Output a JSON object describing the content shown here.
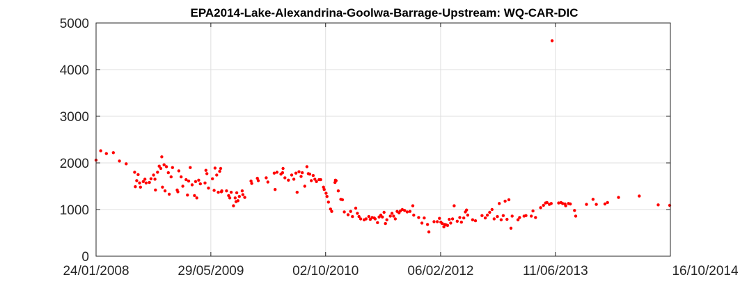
{
  "chart_data": {
    "type": "scatter",
    "title": "EPA2014-Lake-Alexandrina-Goolwa-Barrage-Upstream: WQ-CAR-DIC",
    "xlabel": "",
    "ylabel": "",
    "x_axis": {
      "type": "date",
      "range": [
        "2008-01-24",
        "2014-10-16"
      ],
      "tick_values": [
        "2008-01-24",
        "2009-05-29",
        "2010-10-02",
        "2012-02-06",
        "2013-06-11",
        "2014-10-16"
      ],
      "tick_labels": [
        "24/01/2008",
        "29/05/2009",
        "02/10/2010",
        "06/02/2012",
        "11/06/2013",
        "16/10/2014"
      ]
    },
    "y_axis": {
      "range": [
        0,
        5000
      ],
      "ticks": [
        0,
        1000,
        2000,
        3000,
        4000,
        5000
      ],
      "tick_labels": [
        "0",
        "1000",
        "2000",
        "3000",
        "4000",
        "5000"
      ]
    },
    "grid": true,
    "marker_color": "#ff0000",
    "series": [
      {
        "marker": "dot",
        "points": [
          [
            "2008-01-24",
            2060
          ],
          [
            "2008-02-13",
            2260
          ],
          [
            "2008-03-08",
            2200
          ],
          [
            "2008-04-07",
            2220
          ],
          [
            "2008-05-03",
            2040
          ],
          [
            "2008-06-01",
            1980
          ],
          [
            "2008-07-07",
            1800
          ],
          [
            "2008-07-10",
            1490
          ],
          [
            "2008-07-16",
            1620
          ],
          [
            "2008-07-22",
            1750
          ],
          [
            "2008-07-28",
            1570
          ],
          [
            "2008-08-01",
            1480
          ],
          [
            "2008-08-13",
            1600
          ],
          [
            "2008-08-20",
            1650
          ],
          [
            "2008-08-25",
            1570
          ],
          [
            "2008-09-08",
            1580
          ],
          [
            "2008-09-15",
            1660
          ],
          [
            "2008-09-26",
            1740
          ],
          [
            "2008-10-02",
            1650
          ],
          [
            "2008-10-04",
            1420
          ],
          [
            "2008-10-13",
            1800
          ],
          [
            "2008-10-20",
            1930
          ],
          [
            "2008-10-27",
            1880
          ],
          [
            "2008-10-31",
            2130
          ],
          [
            "2008-11-03",
            1480
          ],
          [
            "2008-11-10",
            1960
          ],
          [
            "2008-11-14",
            1400
          ],
          [
            "2008-11-20",
            1920
          ],
          [
            "2008-11-28",
            1790
          ],
          [
            "2008-12-02",
            1330
          ],
          [
            "2008-12-10",
            1700
          ],
          [
            "2008-12-16",
            1900
          ],
          [
            "2009-01-05",
            1420
          ],
          [
            "2009-01-08",
            1380
          ],
          [
            "2009-01-12",
            1830
          ],
          [
            "2009-01-22",
            1700
          ],
          [
            "2009-01-29",
            1500
          ],
          [
            "2009-02-12",
            1640
          ],
          [
            "2009-02-18",
            1310
          ],
          [
            "2009-02-23",
            1610
          ],
          [
            "2009-03-02",
            1900
          ],
          [
            "2009-03-10",
            1530
          ],
          [
            "2009-03-20",
            1300
          ],
          [
            "2009-03-25",
            1600
          ],
          [
            "2009-03-30",
            1250
          ],
          [
            "2009-04-07",
            1630
          ],
          [
            "2009-04-14",
            1550
          ],
          [
            "2009-05-04",
            1570
          ],
          [
            "2009-05-08",
            1840
          ],
          [
            "2009-05-12",
            1770
          ],
          [
            "2009-05-19",
            1460
          ],
          [
            "2009-06-05",
            1660
          ],
          [
            "2009-06-12",
            1410
          ],
          [
            "2009-06-16",
            1890
          ],
          [
            "2009-06-23",
            1740
          ],
          [
            "2009-06-30",
            1370
          ],
          [
            "2009-07-06",
            1820
          ],
          [
            "2009-07-10",
            1880
          ],
          [
            "2009-07-13",
            1380
          ],
          [
            "2009-07-15",
            1400
          ],
          [
            "2009-08-04",
            1400
          ],
          [
            "2009-08-13",
            1300
          ],
          [
            "2009-08-18",
            1250
          ],
          [
            "2009-08-24",
            1370
          ],
          [
            "2009-09-03",
            1080
          ],
          [
            "2009-09-10",
            1250
          ],
          [
            "2009-09-14",
            1170
          ],
          [
            "2009-09-17",
            1360
          ],
          [
            "2009-09-22",
            1190
          ],
          [
            "2009-09-28",
            1280
          ],
          [
            "2009-10-10",
            1400
          ],
          [
            "2009-10-13",
            1320
          ],
          [
            "2009-10-21",
            1260
          ],
          [
            "2009-11-17",
            1610
          ],
          [
            "2009-11-20",
            1560
          ],
          [
            "2009-12-14",
            1670
          ],
          [
            "2009-12-18",
            1620
          ],
          [
            "2010-01-21",
            1680
          ],
          [
            "2010-01-28",
            1590
          ],
          [
            "2010-02-24",
            1780
          ],
          [
            "2010-02-28",
            1430
          ],
          [
            "2010-03-08",
            1800
          ],
          [
            "2010-03-25",
            1760
          ],
          [
            "2010-04-01",
            1790
          ],
          [
            "2010-04-03",
            1880
          ],
          [
            "2010-04-11",
            1680
          ],
          [
            "2010-04-26",
            1630
          ],
          [
            "2010-05-10",
            1740
          ],
          [
            "2010-05-19",
            1650
          ],
          [
            "2010-05-28",
            1780
          ],
          [
            "2010-06-02",
            1370
          ],
          [
            "2010-06-10",
            1810
          ],
          [
            "2010-06-19",
            1710
          ],
          [
            "2010-06-24",
            1790
          ],
          [
            "2010-07-05",
            1500
          ],
          [
            "2010-07-14",
            1920
          ],
          [
            "2010-07-20",
            1770
          ],
          [
            "2010-07-26",
            1760
          ],
          [
            "2010-08-02",
            1620
          ],
          [
            "2010-08-10",
            1730
          ],
          [
            "2010-08-17",
            1650
          ],
          [
            "2010-08-24",
            1600
          ],
          [
            "2010-09-04",
            1640
          ],
          [
            "2010-09-11",
            1640
          ],
          [
            "2010-09-23",
            1480
          ],
          [
            "2010-09-26",
            1430
          ],
          [
            "2010-10-04",
            1350
          ],
          [
            "2010-10-08",
            1280
          ],
          [
            "2010-10-14",
            1160
          ],
          [
            "2010-10-23",
            1010
          ],
          [
            "2010-10-28",
            960
          ],
          [
            "2010-11-11",
            1580
          ],
          [
            "2010-11-13",
            1630
          ],
          [
            "2010-11-16",
            1620
          ],
          [
            "2010-11-25",
            1400
          ],
          [
            "2010-12-06",
            1220
          ],
          [
            "2010-12-13",
            1210
          ],
          [
            "2010-12-21",
            950
          ],
          [
            "2011-01-06",
            890
          ],
          [
            "2011-01-17",
            960
          ],
          [
            "2011-01-25",
            850
          ],
          [
            "2011-02-08",
            1030
          ],
          [
            "2011-02-15",
            920
          ],
          [
            "2011-02-22",
            850
          ],
          [
            "2011-03-01",
            800
          ],
          [
            "2011-03-16",
            780
          ],
          [
            "2011-03-24",
            800
          ],
          [
            "2011-04-05",
            850
          ],
          [
            "2011-04-11",
            790
          ],
          [
            "2011-04-19",
            830
          ],
          [
            "2011-04-28",
            820
          ],
          [
            "2011-05-02",
            800
          ],
          [
            "2011-05-12",
            720
          ],
          [
            "2011-05-19",
            840
          ],
          [
            "2011-05-26",
            880
          ],
          [
            "2011-06-02",
            840
          ],
          [
            "2011-06-09",
            940
          ],
          [
            "2011-06-15",
            700
          ],
          [
            "2011-06-21",
            780
          ],
          [
            "2011-07-06",
            860
          ],
          [
            "2011-07-13",
            920
          ],
          [
            "2011-07-20",
            860
          ],
          [
            "2011-07-27",
            800
          ],
          [
            "2011-08-04",
            960
          ],
          [
            "2011-08-12",
            930
          ],
          [
            "2011-08-18",
            970
          ],
          [
            "2011-08-26",
            1000
          ],
          [
            "2011-09-05",
            980
          ],
          [
            "2011-09-16",
            950
          ],
          [
            "2011-09-28",
            960
          ],
          [
            "2011-10-10",
            1080
          ],
          [
            "2011-10-14",
            880
          ],
          [
            "2011-11-04",
            830
          ],
          [
            "2011-11-18",
            710
          ],
          [
            "2011-11-28",
            820
          ],
          [
            "2011-12-12",
            680
          ],
          [
            "2011-12-18",
            520
          ],
          [
            "2012-01-09",
            740
          ],
          [
            "2012-01-23",
            740
          ],
          [
            "2012-02-01",
            810
          ],
          [
            "2012-02-07",
            730
          ],
          [
            "2012-02-13",
            700
          ],
          [
            "2012-02-20",
            630
          ],
          [
            "2012-02-24",
            680
          ],
          [
            "2012-03-01",
            670
          ],
          [
            "2012-03-07",
            660
          ],
          [
            "2012-03-14",
            790
          ],
          [
            "2012-03-20",
            710
          ],
          [
            "2012-03-28",
            800
          ],
          [
            "2012-04-04",
            1080
          ],
          [
            "2012-04-17",
            750
          ],
          [
            "2012-04-28",
            830
          ],
          [
            "2012-05-05",
            730
          ],
          [
            "2012-05-15",
            820
          ],
          [
            "2012-05-22",
            950
          ],
          [
            "2012-05-27",
            990
          ],
          [
            "2012-06-01",
            880
          ],
          [
            "2012-06-22",
            780
          ],
          [
            "2012-07-04",
            760
          ],
          [
            "2012-08-01",
            870
          ],
          [
            "2012-08-15",
            820
          ],
          [
            "2012-08-24",
            880
          ],
          [
            "2012-09-03",
            940
          ],
          [
            "2012-09-13",
            1000
          ],
          [
            "2012-09-22",
            800
          ],
          [
            "2012-10-06",
            850
          ],
          [
            "2012-10-14",
            1130
          ],
          [
            "2012-10-22",
            780
          ],
          [
            "2012-10-31",
            870
          ],
          [
            "2012-11-08",
            1180
          ],
          [
            "2012-11-16",
            790
          ],
          [
            "2012-11-24",
            1210
          ],
          [
            "2012-12-03",
            600
          ],
          [
            "2012-12-08",
            860
          ],
          [
            "2013-01-02",
            780
          ],
          [
            "2013-01-09",
            830
          ],
          [
            "2013-01-28",
            860
          ],
          [
            "2013-02-05",
            870
          ],
          [
            "2013-02-28",
            860
          ],
          [
            "2013-03-07",
            970
          ],
          [
            "2013-03-18",
            830
          ],
          [
            "2013-04-09",
            1040
          ],
          [
            "2013-04-21",
            1090
          ],
          [
            "2013-04-30",
            1140
          ],
          [
            "2013-05-06",
            1150
          ],
          [
            "2013-05-16",
            1110
          ],
          [
            "2013-05-24",
            1130
          ],
          [
            "2013-05-28",
            4620
          ],
          [
            "2013-06-25",
            1140
          ],
          [
            "2013-07-05",
            1150
          ],
          [
            "2013-07-12",
            1130
          ],
          [
            "2013-07-22",
            1120
          ],
          [
            "2013-07-25",
            1080
          ],
          [
            "2013-08-06",
            1130
          ],
          [
            "2013-08-14",
            1120
          ],
          [
            "2013-09-01",
            980
          ],
          [
            "2013-09-06",
            860
          ],
          [
            "2013-10-22",
            1110
          ],
          [
            "2013-11-19",
            1220
          ],
          [
            "2013-12-03",
            1110
          ],
          [
            "2014-01-09",
            1120
          ],
          [
            "2014-01-20",
            1150
          ],
          [
            "2014-03-08",
            1260
          ],
          [
            "2014-06-05",
            1290
          ],
          [
            "2014-08-25",
            1100
          ],
          [
            "2014-10-13",
            1090
          ]
        ]
      }
    ]
  }
}
